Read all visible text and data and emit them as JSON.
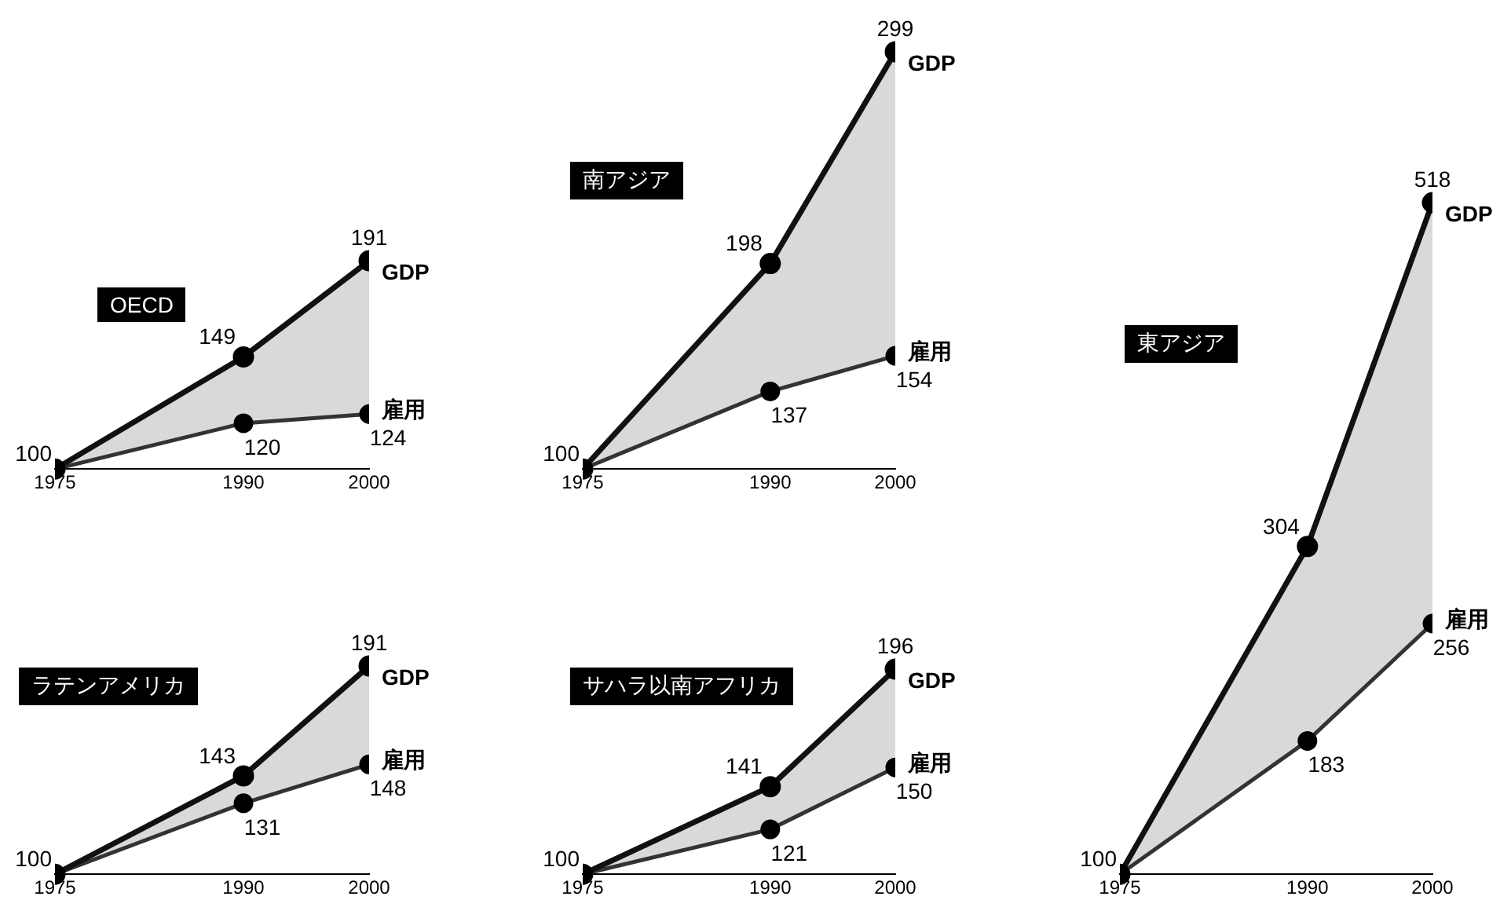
{
  "chart_data": [
    {
      "type": "line",
      "title": "OECD",
      "x": [
        1975,
        1990,
        2000
      ],
      "xlim": [
        1975,
        2000
      ],
      "xticks": [
        1975,
        1990,
        2000
      ],
      "tick_labels": "x",
      "grid": false,
      "legend": false,
      "marker": "circle",
      "line_style": "solid",
      "series": [
        {
          "name": "GDP",
          "color": "#111111",
          "values": [
            100,
            149,
            191
          ],
          "value_labels": [
            "100",
            "149",
            "191"
          ]
        },
        {
          "name": "雇用",
          "color": "#333333",
          "values": [
            100,
            120,
            124
          ],
          "value_labels": [
            null,
            "120",
            "124"
          ]
        }
      ]
    },
    {
      "type": "line",
      "title": "南アジア",
      "x": [
        1975,
        1990,
        2000
      ],
      "xlim": [
        1975,
        2000
      ],
      "xticks": [
        1975,
        1990,
        2000
      ],
      "tick_labels": "x",
      "grid": false,
      "legend": false,
      "marker": "circle",
      "line_style": "solid",
      "series": [
        {
          "name": "GDP",
          "color": "#111111",
          "values": [
            100,
            198,
            299
          ],
          "value_labels": [
            "100",
            "198",
            "299"
          ]
        },
        {
          "name": "雇用",
          "color": "#333333",
          "values": [
            100,
            137,
            154
          ],
          "value_labels": [
            null,
            "137",
            "154"
          ]
        }
      ]
    },
    {
      "type": "line",
      "title": "ラテンアメリカ",
      "x": [
        1975,
        1990,
        2000
      ],
      "xlim": [
        1975,
        2000
      ],
      "xticks": [
        1975,
        1990,
        2000
      ],
      "tick_labels": "x",
      "grid": false,
      "legend": false,
      "marker": "circle",
      "line_style": "solid",
      "series": [
        {
          "name": "GDP",
          "color": "#111111",
          "values": [
            100,
            143,
            191
          ],
          "value_labels": [
            "100",
            "143",
            "191"
          ]
        },
        {
          "name": "雇用",
          "color": "#333333",
          "values": [
            100,
            131,
            148
          ],
          "value_labels": [
            null,
            "131",
            "148"
          ]
        }
      ]
    },
    {
      "type": "line",
      "title": "サハラ以南アフリカ",
      "x": [
        1975,
        1990,
        2000
      ],
      "xlim": [
        1975,
        2000
      ],
      "xticks": [
        1975,
        1990,
        2000
      ],
      "tick_labels": "x",
      "grid": false,
      "legend": false,
      "marker": "circle",
      "line_style": "solid",
      "series": [
        {
          "name": "GDP",
          "color": "#111111",
          "values": [
            100,
            141,
            196
          ],
          "value_labels": [
            "100",
            "141",
            "196"
          ]
        },
        {
          "name": "雇用",
          "color": "#333333",
          "values": [
            100,
            121,
            150
          ],
          "value_labels": [
            null,
            "121",
            "150"
          ]
        }
      ]
    },
    {
      "type": "line",
      "title": "東アジア",
      "x": [
        1975,
        1990,
        2000
      ],
      "xlim": [
        1975,
        2000
      ],
      "xticks": [
        1975,
        1990,
        2000
      ],
      "tick_labels": "x",
      "grid": false,
      "legend": false,
      "marker": "circle",
      "line_style": "solid",
      "series": [
        {
          "name": "GDP",
          "color": "#111111",
          "values": [
            100,
            304,
            518
          ],
          "value_labels": [
            "100",
            "304",
            "518"
          ]
        },
        {
          "name": "雇用",
          "color": "#333333",
          "values": [
            100,
            183,
            256
          ],
          "value_labels": [
            null,
            "183",
            "256"
          ]
        }
      ]
    }
  ]
}
